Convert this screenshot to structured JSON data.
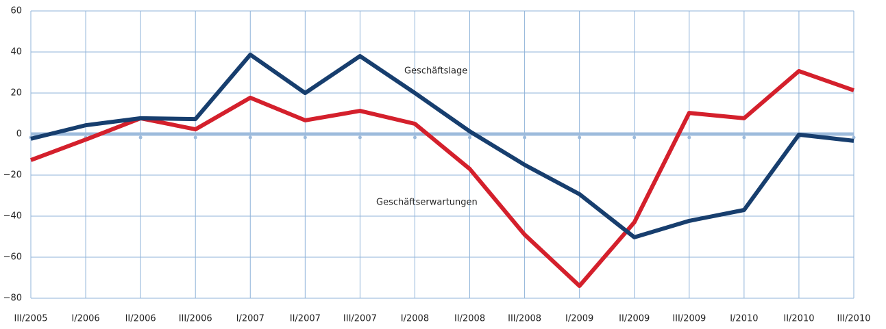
{
  "chart_data": {
    "type": "line",
    "categories": [
      "III/2005",
      "I/2006",
      "II/2006",
      "III/2006",
      "I/2007",
      "II/2007",
      "III/2007",
      "I/2008",
      "II/2008",
      "III/2008",
      "I/2009",
      "II/2009",
      "III/2009",
      "I/2010",
      "II/2010",
      "III/2010"
    ],
    "series": [
      {
        "name": "Geschäftslage",
        "color": "#173e6e",
        "values": [
          -2.3,
          4.3,
          7.7,
          7.3,
          38.7,
          20,
          38,
          20,
          1.3,
          -15,
          -29.3,
          -50.3,
          -42.3,
          -37,
          -0.3,
          -3.3
        ]
      },
      {
        "name": "Geschäftserwartungen",
        "color": "#d4202c",
        "values": [
          -12.7,
          -2.7,
          7.7,
          2.3,
          17.7,
          6.7,
          11.3,
          5,
          -17,
          -49,
          -74,
          -43,
          10.3,
          7.7,
          30.7,
          21.3
        ]
      }
    ],
    "ylim": [
      -80,
      60
    ],
    "yticks": [
      {
        "value": -80,
        "label": "−80"
      },
      {
        "value": -60,
        "label": "−60"
      },
      {
        "value": -40,
        "label": "−40"
      },
      {
        "value": -20,
        "label": "−20"
      },
      0,
      20,
      40,
      60
    ],
    "grid": true
  }
}
